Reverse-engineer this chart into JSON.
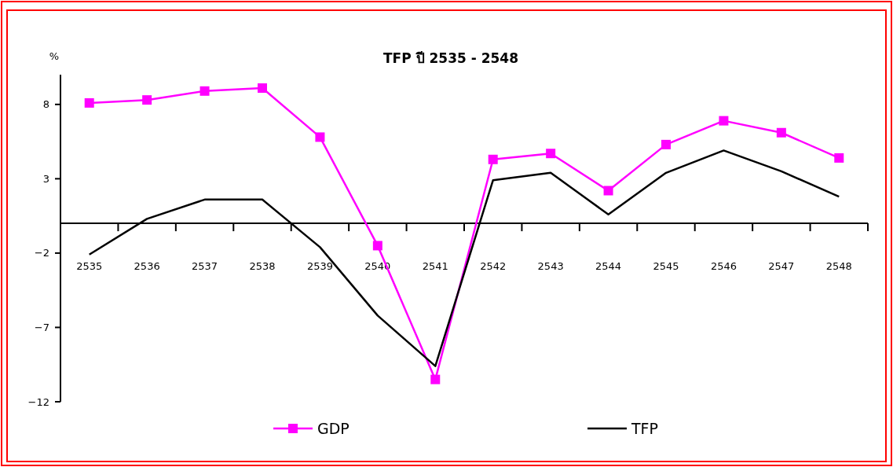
{
  "chart_data": {
    "type": "line",
    "title": "TFP ปี 2535 - 2548",
    "ylabel": "%",
    "categories": [
      "2535",
      "2536",
      "2537",
      "2538",
      "2539",
      "2540",
      "2541",
      "2542",
      "2543",
      "2544",
      "2545",
      "2546",
      "2547",
      "2548"
    ],
    "series": [
      {
        "name": "GDP",
        "color": "#ff00ff",
        "marker": "square",
        "values": [
          8.1,
          8.3,
          8.9,
          9.1,
          5.8,
          -1.5,
          -10.5,
          4.3,
          4.7,
          2.2,
          5.3,
          6.9,
          6.1,
          4.4
        ]
      },
      {
        "name": "TFP",
        "color": "#000000",
        "marker": "none",
        "values": [
          -2.1,
          0.3,
          1.6,
          1.6,
          -1.6,
          -6.2,
          -9.6,
          2.9,
          3.4,
          0.6,
          3.4,
          4.9,
          3.5,
          1.8
        ]
      }
    ],
    "ylim": [
      -12,
      10
    ],
    "yticks": [
      -12,
      -7,
      -2,
      3,
      8
    ],
    "grid": false,
    "legend": "bottom"
  }
}
